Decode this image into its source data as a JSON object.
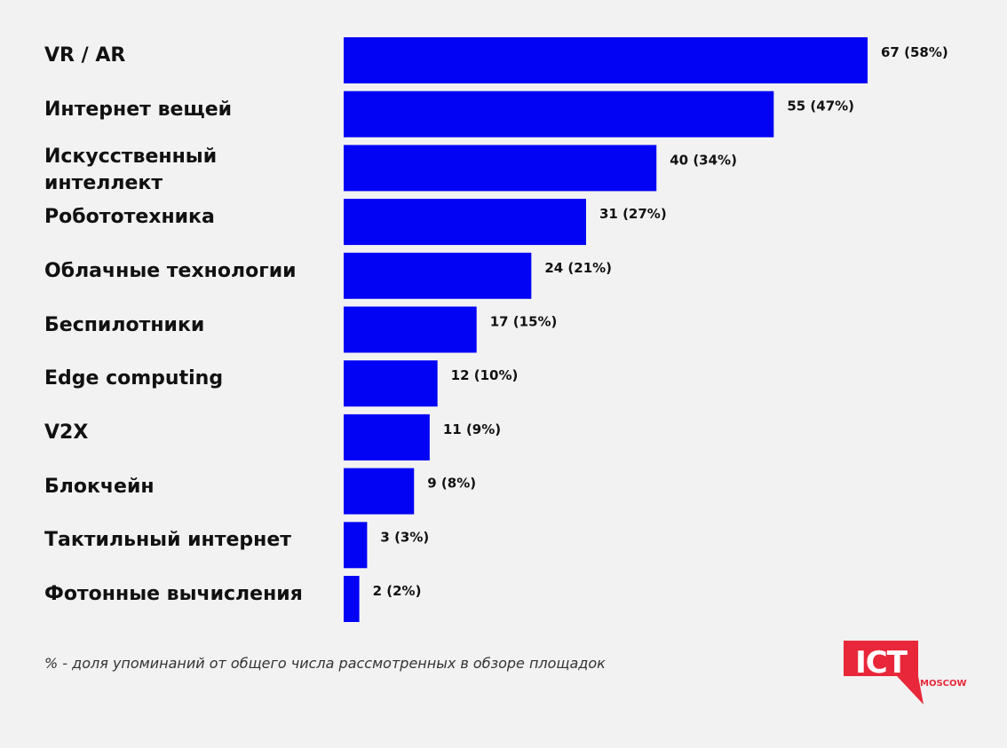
{
  "chart_data": {
    "type": "bar",
    "orientation": "horizontal",
    "categories": [
      "VR / AR",
      "Интернет вещей",
      "Искусственный интеллект",
      "Робототехника",
      "Облачные технологии",
      "Беспилотники",
      "Edge computing",
      "V2X",
      "Блокчейн",
      "Тактильный интернет",
      "Фотонные вычисления"
    ],
    "values": [
      67,
      55,
      40,
      31,
      24,
      17,
      12,
      11,
      9,
      3,
      2
    ],
    "percents": [
      58,
      47,
      34,
      27,
      21,
      15,
      10,
      9,
      8,
      3,
      2
    ],
    "data_labels": [
      "67 (58%)",
      "55 (47%)",
      "40 (34%)",
      "31 (27%)",
      "24 (21%)",
      "17 (15%)",
      "12 (10%)",
      "11 (9%)",
      "9 (8%)",
      "3 (3%)",
      "2 (2%)"
    ],
    "title": "",
    "xlabel": "",
    "ylabel": "",
    "grid": false,
    "bar_color": "#0202f5"
  },
  "footnote": "% - доля упоминаний от общего числа рассмотренных в обзоре площадок",
  "logo": {
    "text": "ICT",
    "subtext": "MOSCOW",
    "color": "#e8283a"
  }
}
